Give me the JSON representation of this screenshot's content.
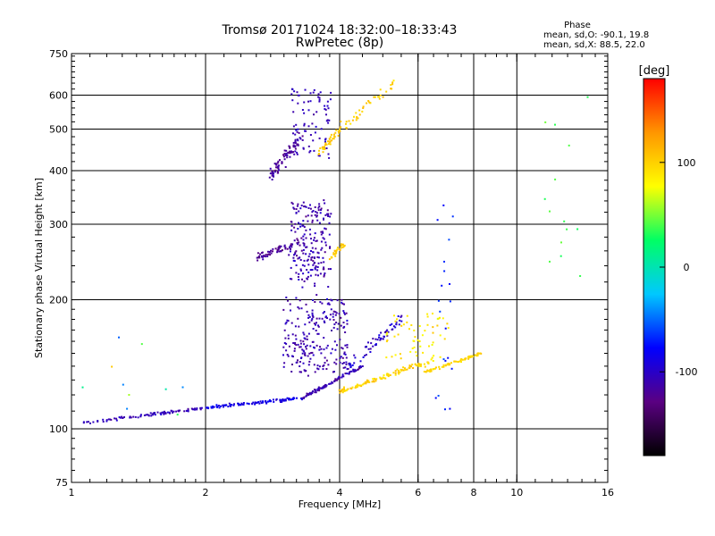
{
  "chart_data": {
    "type": "scatter",
    "title": "Tromsø 20171024 18:32:00–18:33:43",
    "subtitle": "RwPretec (8p)",
    "xlabel": "Frequency [MHz]",
    "ylabel": "Stationary phase Virtual Height [km]",
    "x_scale": "log",
    "y_scale": "log",
    "xlim": [
      1,
      16
    ],
    "ylim": [
      75,
      750
    ],
    "x_ticks": [
      1,
      2,
      4,
      6,
      8,
      10,
      16
    ],
    "x_tick_labels": [
      "1",
      "2",
      "4",
      "6",
      "8",
      "10",
      "16"
    ],
    "x_grid_lines": [
      2,
      4,
      6,
      8,
      10
    ],
    "y_ticks": [
      75,
      100,
      200,
      300,
      400,
      500,
      600,
      750
    ],
    "y_tick_labels": [
      "75",
      "100",
      "200",
      "300",
      "400",
      "500",
      "600",
      "750"
    ],
    "y_grid_lines": [
      100,
      200,
      300,
      400,
      500,
      600
    ],
    "grid": true,
    "colorbar": {
      "label": "[deg]",
      "range": [
        -180,
        180
      ],
      "ticks": [
        100,
        0,
        -100
      ],
      "tick_labels": [
        "100",
        "0",
        "-100"
      ],
      "colormap": [
        "#000000",
        "#5a0082",
        "#0000ff",
        "#00c8ff",
        "#00ff64",
        "#ffff00",
        "#ff9600",
        "#ff0000"
      ]
    },
    "phase_legend": {
      "heading": "Phase",
      "line_o": "mean, sd,O: -90.1, 19.8",
      "line_x": "mean, sd,X:  88.5, 22.0"
    },
    "clusters": [
      {
        "x": [
          1.05,
          2.0
        ],
        "y": [
          103,
          112
        ],
        "spread": 0.012,
        "phase": [
          -100,
          -110
        ],
        "n": 90
      },
      {
        "x": [
          2.0,
          3.3
        ],
        "y": [
          112,
          118
        ],
        "spread": 0.012,
        "phase": [
          -95,
          -80
        ],
        "n": 110
      },
      {
        "x": [
          3.3,
          4.5
        ],
        "y": [
          118,
          140
        ],
        "spread": 0.015,
        "phase": [
          -100,
          -120
        ],
        "n": 90
      },
      {
        "x": [
          4.0,
          6.5
        ],
        "y": [
          122,
          145
        ],
        "spread": 0.018,
        "phase": [
          90,
          110
        ],
        "n": 110
      },
      {
        "x": [
          6.2,
          8.3
        ],
        "y": [
          135,
          150
        ],
        "spread": 0.012,
        "phase": [
          100,
          95
        ],
        "n": 70
      },
      {
        "x": [
          3.0,
          4.2
        ],
        "y": [
          135,
          200
        ],
        "spread": 0.05,
        "phase": [
          -100,
          -120
        ],
        "n": 230
      },
      {
        "x": [
          4.2,
          5.5
        ],
        "y": [
          140,
          180
        ],
        "spread": 0.045,
        "phase": [
          -90,
          -110
        ],
        "n": 60
      },
      {
        "x": [
          5.0,
          7.0
        ],
        "y": [
          140,
          185
        ],
        "spread": 0.05,
        "phase": [
          80,
          100
        ],
        "n": 60
      },
      {
        "x": [
          3.1,
          3.8
        ],
        "y": [
          220,
          340
        ],
        "spread": 0.05,
        "phase": [
          -100,
          -120
        ],
        "n": 200
      },
      {
        "x": [
          2.6,
          3.3
        ],
        "y": [
          250,
          275
        ],
        "spread": 0.03,
        "phase": [
          -115,
          -125
        ],
        "n": 60
      },
      {
        "x": [
          3.8,
          4.1
        ],
        "y": [
          250,
          270
        ],
        "spread": 0.02,
        "phase": [
          100,
          105
        ],
        "n": 30
      },
      {
        "x": [
          2.8,
          3.3
        ],
        "y": [
          390,
          480
        ],
        "spread": 0.05,
        "phase": [
          -110,
          -125
        ],
        "n": 90
      },
      {
        "x": [
          3.1,
          3.9
        ],
        "y": [
          430,
          620
        ],
        "spread": 0.05,
        "phase": [
          -100,
          -110
        ],
        "n": 80
      },
      {
        "x": [
          3.6,
          4.0
        ],
        "y": [
          440,
          500
        ],
        "spread": 0.03,
        "phase": [
          105,
          100
        ],
        "n": 40
      },
      {
        "x": [
          4.0,
          5.3
        ],
        "y": [
          500,
          640
        ],
        "spread": 0.05,
        "phase": [
          110,
          90
        ],
        "n": 40
      },
      {
        "x": [
          6.6,
          7.2
        ],
        "y": [
          92,
          350
        ],
        "spread": 0.02,
        "phase": [
          -80,
          -60
        ],
        "n": 20
      },
      {
        "x": [
          11.5,
          14.5
        ],
        "y": [
          220,
          600
        ],
        "spread": 0.06,
        "phase": [
          30,
          50
        ],
        "n": 14
      },
      {
        "x": [
          1.05,
          1.8
        ],
        "y": [
          90,
          160
        ],
        "spread": 0.08,
        "phase": [
          -110,
          120
        ],
        "n": 10
      }
    ]
  }
}
